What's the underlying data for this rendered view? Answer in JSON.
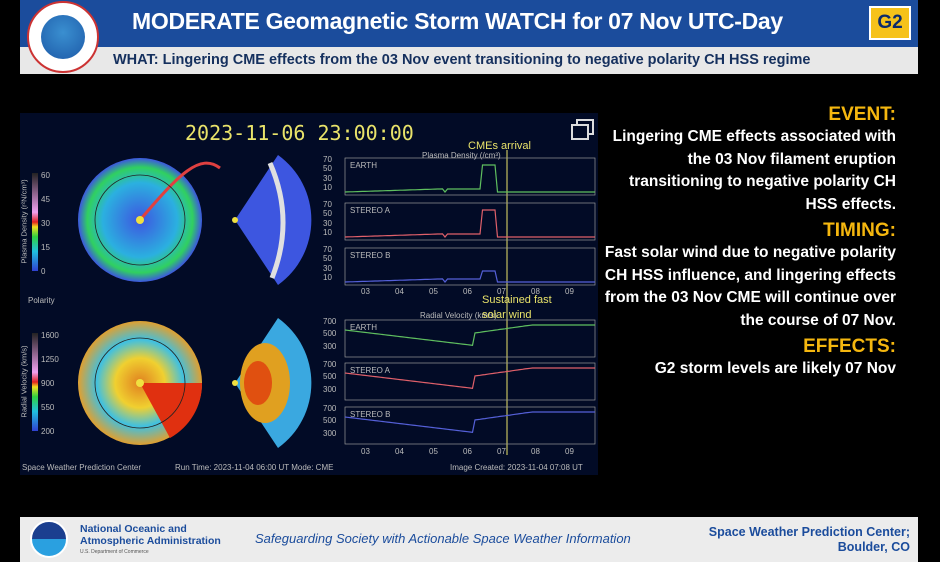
{
  "header": {
    "title": "MODERATE Geomagnetic Storm WATCH for 07 Nov UTC-Day",
    "badge": "G2",
    "logo": "NATIONAL WEATHER SERVICE"
  },
  "subheader": {
    "what": "WHAT: Lingering CME effects from the 03 Nov event transitioning to negative polarity  CH HSS regime"
  },
  "model": {
    "timestamp": "2023-11-06  23:00:00",
    "annotation_cme": "CMEs arrival",
    "annotation_fast": "Sustained fast solar wind",
    "density_title": "Plasma Density (/cm³)",
    "velocity_title": "Radial Velocity (km/s)",
    "density_colorbar_label": "Plasma Density (r²N/cm³)",
    "density_colorbar_ticks": [
      "60",
      "45",
      "30",
      "15",
      "0"
    ],
    "velocity_colorbar_label": "Radial Velocity (km/s)",
    "velocity_colorbar_ticks": [
      "1600",
      "1250",
      "900",
      "550",
      "200"
    ],
    "polarity_label": "Polarity",
    "panels": [
      "EARTH",
      "STEREO A",
      "STEREO B"
    ],
    "density_yticks": [
      "70",
      "50",
      "30",
      "10"
    ],
    "velocity_yticks": [
      "700",
      "500",
      "300"
    ],
    "xticks": [
      "03",
      "04",
      "05",
      "06",
      "07",
      "08",
      "09"
    ],
    "footer_left": "Space Weather Prediction Center",
    "run_time": "Run Time: 2023-11-04 06:00 UT   Mode: CME",
    "image_created": "Image Created: 2023-11-04 07:08 UT",
    "icon": "expand-icon"
  },
  "right": {
    "event_heading": "EVENT:",
    "event_text": "Lingering CME effects associated with the 03 Nov filament eruption transitioning to negative polarity CH HSS effects.",
    "timing_heading": "TIMING:",
    "timing_text": "Fast solar wind due to negative polarity CH HSS influence, and lingering effects from the 03 Nov CME will continue over the course of 07 Nov.",
    "effects_heading": "EFFECTS:",
    "effects_text": "G2 storm levels are likely 07 Nov"
  },
  "footer": {
    "org_line1": "National Oceanic and",
    "org_line2": "Atmospheric Administration",
    "dept": "U.S. Department of Commerce",
    "tagline": "Safeguarding Society with  Actionable Space Weather Information",
    "center_line1": "Space Weather Prediction Center;",
    "center_line2": "Boulder, CO",
    "logo": "NOAA"
  },
  "colors": {
    "header_blue": "#1b4c9c",
    "badge_yellow": "#f6c21a",
    "heading_orange": "#f5b70f",
    "earth": "#5fbf5f",
    "stereo_a": "#e0606a",
    "stereo_b": "#5560d8"
  }
}
